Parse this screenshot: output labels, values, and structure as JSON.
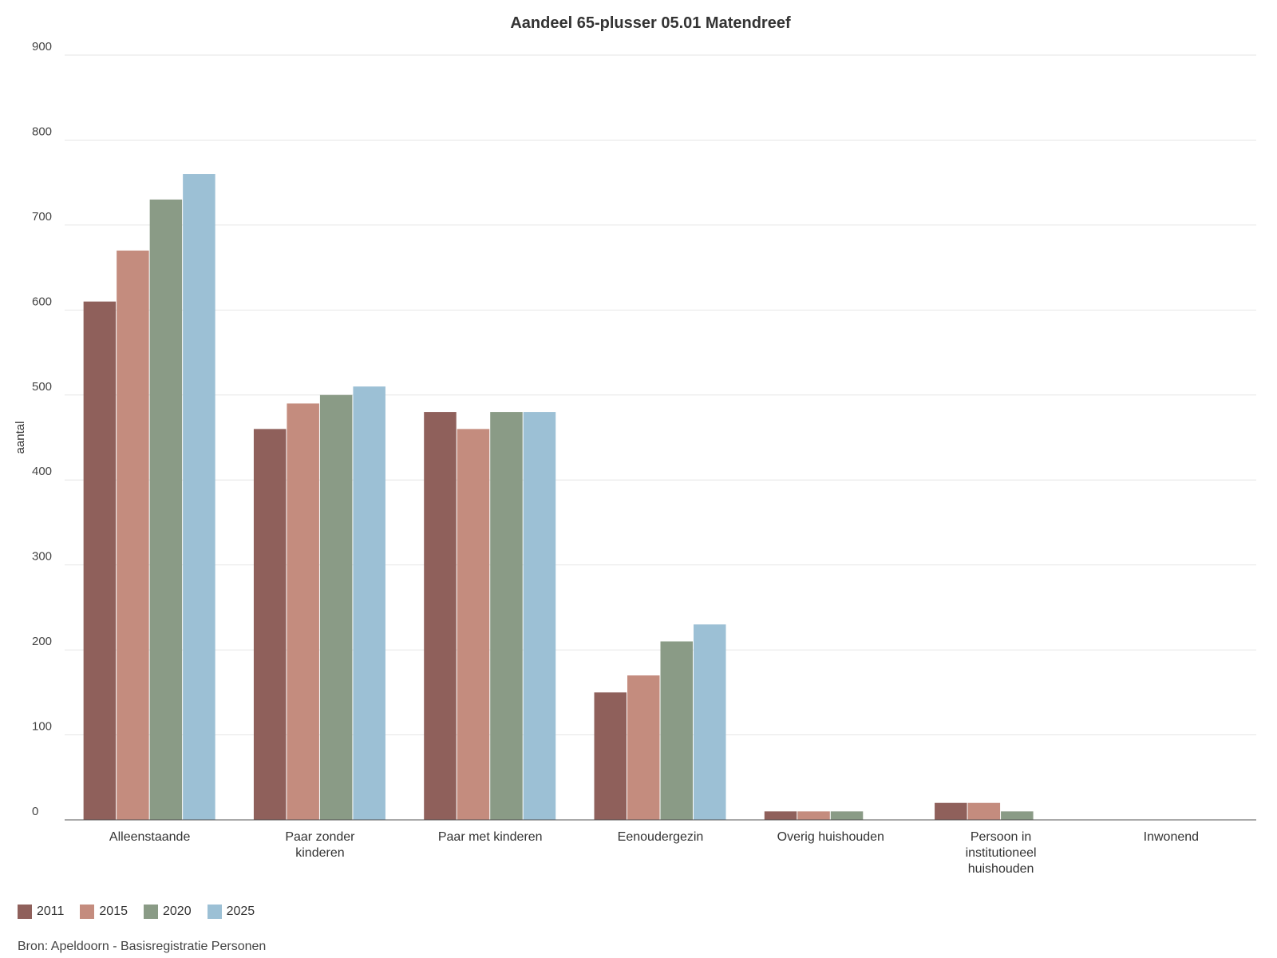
{
  "chart_data": {
    "type": "bar",
    "title": "Aandeel 65-plusser 05.01 Matendreef",
    "xlabel": "",
    "ylabel": "aantal",
    "ylim": [
      0,
      900
    ],
    "yticks": [
      0,
      100,
      200,
      300,
      400,
      500,
      600,
      700,
      800,
      900
    ],
    "grid": true,
    "legend_position": "bottom-left",
    "categories": [
      [
        "Alleenstaande"
      ],
      [
        "Paar zonder",
        "kinderen"
      ],
      [
        "Paar met kinderen"
      ],
      [
        "Eenoudergezin"
      ],
      [
        "Overig huishouden"
      ],
      [
        "Persoon in",
        "institutioneel",
        "huishouden"
      ],
      [
        "Inwonend"
      ]
    ],
    "series": [
      {
        "name": "2011",
        "color": "#8f605b",
        "values": [
          610,
          460,
          480,
          150,
          10,
          20,
          0
        ]
      },
      {
        "name": "2015",
        "color": "#c48c7e",
        "values": [
          670,
          490,
          460,
          170,
          10,
          20,
          0
        ]
      },
      {
        "name": "2020",
        "color": "#8a9b86",
        "values": [
          730,
          500,
          480,
          210,
          10,
          10,
          0
        ]
      },
      {
        "name": "2025",
        "color": "#9cc0d5",
        "values": [
          760,
          510,
          480,
          230,
          0,
          0,
          0
        ]
      }
    ],
    "source": "Bron: Apeldoorn - Basisregistratie Personen"
  }
}
